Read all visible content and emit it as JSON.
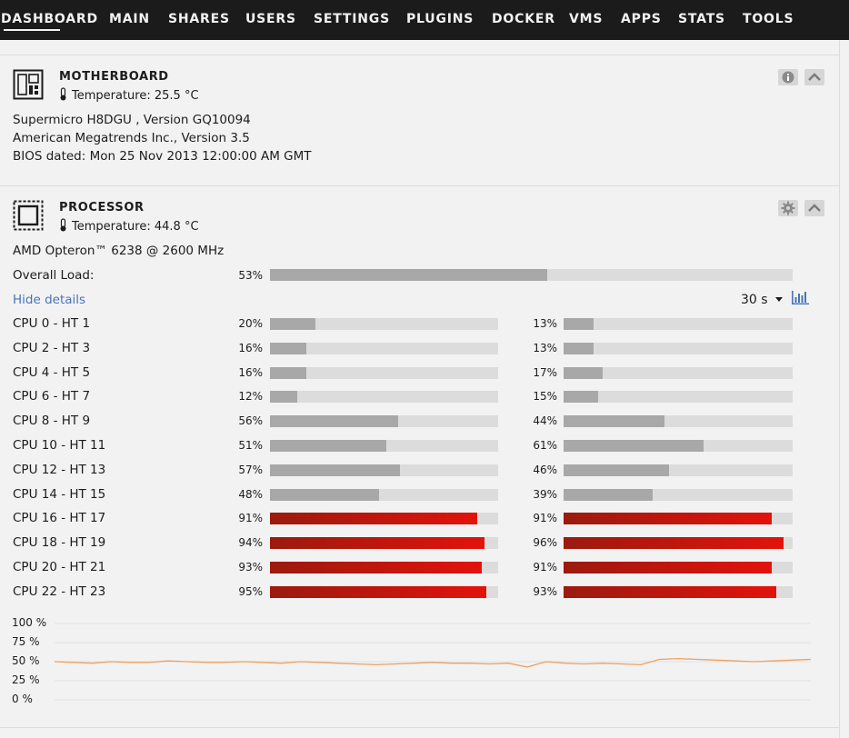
{
  "nav": {
    "items": [
      "DASHBOARD",
      "MAIN",
      "SHARES",
      "USERS",
      "SETTINGS",
      "PLUGINS",
      "DOCKER",
      "VMS",
      "APPS",
      "STATS",
      "TOOLS"
    ],
    "active": "DASHBOARD"
  },
  "motherboard": {
    "title": "MOTHERBOARD",
    "temperature": "Temperature: 25.5 °C",
    "model": "Supermicro H8DGU , Version GQ10094",
    "bios_vendor": "American Megatrends Inc., Version 3.5",
    "bios_date": "BIOS dated: Mon 25 Nov 2013 12:00:00 AM GMT",
    "icons": [
      "motherboard-icon",
      "thermometer-icon",
      "info-icon",
      "chevron-up-icon"
    ]
  },
  "processor": {
    "title": "PROCESSOR",
    "temperature": "Temperature: 44.8 °C",
    "model": "AMD Opteron™ 6238 @ 2600 MHz",
    "overall_label": "Overall Load:",
    "overall_value": 53,
    "overall_text": "53%",
    "hide_details": "Hide details",
    "interval": "30 s",
    "icons": [
      "cpu-icon",
      "thermometer-icon",
      "gear-icon",
      "chevron-up-icon",
      "caret-down-icon",
      "bar-chart-icon"
    ],
    "colors": {
      "normal_fill": "#a8a8a8",
      "track": "#dcdcdc",
      "hot_fill": "#e2130b",
      "hot_fill_dark": "#9b1a0e",
      "graph_line": "#f0a060"
    },
    "cpus": [
      {
        "label": "CPU 0 - HT 1",
        "v1": 20,
        "t1": "20%",
        "v2": 13,
        "t2": "13%"
      },
      {
        "label": "CPU 2 - HT 3",
        "v1": 16,
        "t1": "16%",
        "v2": 13,
        "t2": "13%"
      },
      {
        "label": "CPU 4 - HT 5",
        "v1": 16,
        "t1": "16%",
        "v2": 17,
        "t2": "17%"
      },
      {
        "label": "CPU 6 - HT 7",
        "v1": 12,
        "t1": "12%",
        "v2": 15,
        "t2": "15%"
      },
      {
        "label": "CPU 8 - HT 9",
        "v1": 56,
        "t1": "56%",
        "v2": 44,
        "t2": "44%"
      },
      {
        "label": "CPU 10 - HT 11",
        "v1": 51,
        "t1": "51%",
        "v2": 61,
        "t2": "61%"
      },
      {
        "label": "CPU 12 - HT 13",
        "v1": 57,
        "t1": "57%",
        "v2": 46,
        "t2": "46%"
      },
      {
        "label": "CPU 14 - HT 15",
        "v1": 48,
        "t1": "48%",
        "v2": 39,
        "t2": "39%"
      },
      {
        "label": "CPU 16 - HT 17",
        "v1": 91,
        "t1": "91%",
        "v2": 91,
        "t2": "91%"
      },
      {
        "label": "CPU 18 - HT 19",
        "v1": 94,
        "t1": "94%",
        "v2": 96,
        "t2": "96%"
      },
      {
        "label": "CPU 20 - HT 21",
        "v1": 93,
        "t1": "93%",
        "v2": 91,
        "t2": "91%"
      },
      {
        "label": "CPU 22 - HT 23",
        "v1": 95,
        "t1": "95%",
        "v2": 93,
        "t2": "93%"
      }
    ]
  },
  "chart_data": {
    "type": "line",
    "ylim": [
      0,
      100
    ],
    "y_ticks": [
      "100 %",
      "75 %",
      "50 %",
      "25 %",
      "0 %"
    ],
    "grid": true,
    "series": [
      {
        "values": [
          50,
          49,
          48,
          50,
          49,
          49,
          51,
          50,
          49,
          49,
          50,
          49,
          48,
          50,
          49,
          48,
          47,
          46,
          47,
          48,
          49,
          48,
          48,
          47,
          48,
          43,
          50,
          48,
          47,
          48,
          47,
          46,
          53,
          54,
          53,
          52,
          51,
          50,
          51,
          52,
          53
        ]
      }
    ]
  }
}
